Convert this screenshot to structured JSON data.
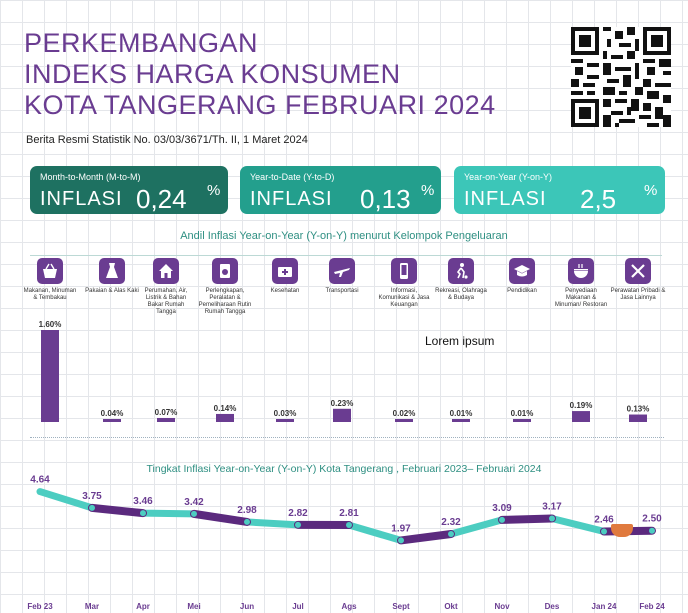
{
  "header": {
    "title_lines": [
      "PERKEMBANGAN",
      "INDEKS HARGA KONSUMEN",
      "KOTA TANGERANG FEBRUARI 2024"
    ],
    "subtitle": "Berita Resmi Statistik No. 03/03/3671/Th. II, 1 Maret 2024"
  },
  "cards": {
    "mtm": {
      "caption": "Month-to-Month (M-to-M)",
      "label": "INFLASI",
      "value": "0,24",
      "unit": "%",
      "color": "#1e7161"
    },
    "ytd": {
      "caption": "Year-to-Date (Y-to-D)",
      "label": "INFLASI",
      "value": "0,13",
      "unit": "%",
      "color": "#239f8d"
    },
    "yoy": {
      "caption": "Year-on-Year (Y-on-Y)",
      "label": "INFLASI",
      "value": "2,5",
      "unit": "%",
      "color": "#3cc6b8"
    }
  },
  "andil": {
    "title": "Andil Inflasi Year-on-Year (Y-on-Y) menurut Kelompok Pengeluaran",
    "note": "Lorem ipsum",
    "categories": [
      {
        "label": "Makanan, Minuman & Tembakau",
        "icon": "basket-icon"
      },
      {
        "label": "Pakaian & Alas Kaki",
        "icon": "dress-icon"
      },
      {
        "label": "Perumahan, Air, Listrik & Bahan Bakar Rumah Tangga",
        "icon": "house-icon"
      },
      {
        "label": "Perlengkapan, Peralatan & Pemeliharaan Rutin Rumah Tangga",
        "icon": "appliance-icon"
      },
      {
        "label": "Kesehatan",
        "icon": "medical-kit-icon"
      },
      {
        "label": "Transportasi",
        "icon": "airplane-icon"
      },
      {
        "label": "Informasi, Komunikasi & Jasa Keuangan",
        "icon": "phone-icon"
      },
      {
        "label": "Rekreasi, Olahraga & Budaya",
        "icon": "soccer-player-icon"
      },
      {
        "label": "Pendidikan",
        "icon": "graduation-cap-icon"
      },
      {
        "label": "Penyediaan Makanan & Minuman/ Restoran",
        "icon": "restaurant-icon"
      },
      {
        "label": "Perawatan Pribadi & Jasa Lainnya",
        "icon": "tools-icon"
      }
    ]
  },
  "chart_data": [
    {
      "type": "bar",
      "categories": [
        "Makanan, Minuman & Tembakau",
        "Pakaian & Alas Kaki",
        "Perumahan, Air, Listrik & Bahan Bakar Rumah Tangga",
        "Perlengkapan, Peralatan & Pemeliharaan Rutin Rumah Tangga",
        "Kesehatan",
        "Transportasi",
        "Informasi, Komunikasi & Jasa Keuangan",
        "Rekreasi, Olahraga & Budaya",
        "Pendidikan",
        "Penyediaan Makanan & Minuman/ Restoran",
        "Perawatan Pribadi & Jasa Lainnya"
      ],
      "values": [
        1.6,
        0.04,
        0.07,
        0.14,
        0.03,
        0.23,
        0.02,
        0.01,
        0.01,
        0.19,
        0.13
      ],
      "labels": [
        "1.60%",
        "0.04%",
        "0.07%",
        "0.14%",
        "0.03%",
        "0.23%",
        "0.02%",
        "0.01%",
        "0.01%",
        "0.19%",
        "0.13%"
      ],
      "ylim": [
        0,
        1.6
      ],
      "color": "#6a3c91"
    },
    {
      "type": "line",
      "title": "Tingkat Inflasi Year-on-Year (Y-on-Y) Kota Tangerang , Februari 2023– Februari 2024",
      "categories": [
        "Feb 23",
        "Mar",
        "Apr",
        "Mei",
        "Jun",
        "Jul",
        "Ags",
        "Sept",
        "Okt",
        "Nov",
        "Des",
        "Jan 24",
        "Feb 24"
      ],
      "values": [
        4.64,
        3.75,
        3.46,
        3.42,
        2.98,
        2.82,
        2.81,
        1.97,
        2.32,
        3.09,
        3.17,
        2.46,
        2.5
      ],
      "labels": [
        "4.64",
        "3.75",
        "3.46",
        "3.42",
        "2.98",
        "2.82",
        "2.81",
        "1.97",
        "2.32",
        "3.09",
        "3.17",
        "2.46",
        "2.50"
      ],
      "ylim": [
        1.5,
        5.0
      ],
      "colors": {
        "teal": "#4ccdc1",
        "purple": "#5b2a7e",
        "label": "#6a3c91",
        "month": "#6a3c91"
      }
    }
  ]
}
